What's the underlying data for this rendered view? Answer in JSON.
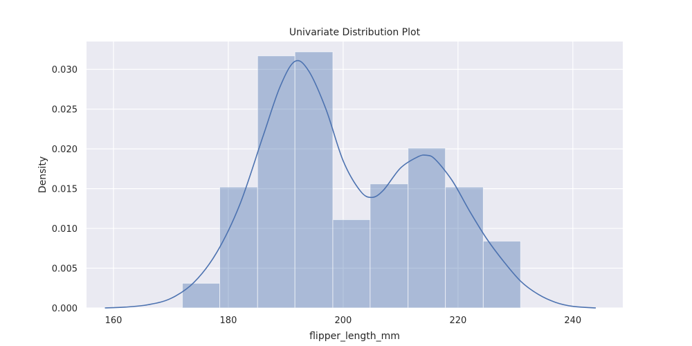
{
  "chart_data": {
    "type": "bar",
    "subtype": "histogram-with-kde",
    "title": "Univariate Distribution Plot",
    "xlabel": "flipper_length_mm",
    "ylabel": "Density",
    "xlim": [
      155.3,
      248.7
    ],
    "ylim": [
      0,
      0.0335
    ],
    "xticks": [
      160,
      180,
      200,
      220,
      240
    ],
    "yticks": [
      0.0,
      0.005,
      0.01,
      0.015,
      0.02,
      0.025,
      0.03
    ],
    "ytick_labels": [
      "0.000",
      "0.005",
      "0.010",
      "0.015",
      "0.020",
      "0.025",
      "0.030"
    ],
    "grid": true,
    "bins": [
      {
        "x0": 172.0,
        "x1": 178.5,
        "density": 0.0031
      },
      {
        "x0": 178.5,
        "x1": 185.1,
        "density": 0.0152
      },
      {
        "x0": 185.1,
        "x1": 191.6,
        "density": 0.0317
      },
      {
        "x0": 191.6,
        "x1": 198.2,
        "density": 0.0322
      },
      {
        "x0": 198.2,
        "x1": 204.7,
        "density": 0.0111
      },
      {
        "x0": 204.7,
        "x1": 211.3,
        "density": 0.0156
      },
      {
        "x0": 211.3,
        "x1": 217.8,
        "density": 0.0201
      },
      {
        "x0": 217.8,
        "x1": 224.4,
        "density": 0.0152
      },
      {
        "x0": 224.4,
        "x1": 230.9,
        "density": 0.0084
      }
    ],
    "kde": {
      "x": [
        158.5,
        162,
        166,
        170,
        174,
        178,
        182,
        186,
        189,
        191.6,
        194,
        197,
        200,
        203,
        205,
        207,
        210,
        213,
        214.5,
        216,
        219,
        222,
        225,
        228,
        231,
        234,
        237,
        240,
        244
      ],
      "y": [
        0.0,
        0.0001,
        0.0004,
        0.0012,
        0.0032,
        0.007,
        0.013,
        0.0215,
        0.0278,
        0.031,
        0.0298,
        0.025,
        0.0185,
        0.0147,
        0.0139,
        0.0148,
        0.0176,
        0.019,
        0.0192,
        0.0187,
        0.016,
        0.0122,
        0.0087,
        0.0058,
        0.0033,
        0.0017,
        0.0007,
        0.0002,
        0.0
      ]
    },
    "colors": {
      "bar": "#4c72b0",
      "line": "#4c72b0",
      "background": "#eaeaf2"
    }
  }
}
